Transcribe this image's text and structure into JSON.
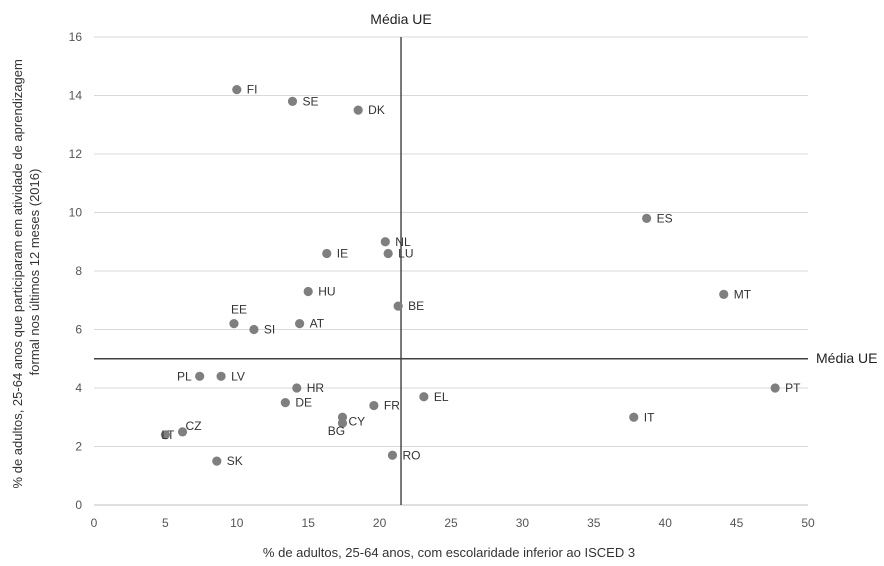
{
  "chart_data": {
    "type": "scatter",
    "xlabel": "% de adultos, 25-64 anos, com escolaridade inferior ao ISCED 3",
    "ylabel_lines": [
      "% de adultos, 25-64 anos que participaram em atividade de aprendizagem",
      "formal nos últimos 12 meses (2016)"
    ],
    "xlim": [
      0,
      50
    ],
    "ylim": [
      0,
      16
    ],
    "xticks": [
      0,
      5,
      10,
      15,
      20,
      25,
      30,
      35,
      40,
      45,
      50
    ],
    "yticks": [
      0,
      2,
      4,
      6,
      8,
      10,
      12,
      14,
      16
    ],
    "grid": "horizontal",
    "marker_color": "#7f7f7f",
    "reference_lines": {
      "vertical": {
        "x": 21.5,
        "label": "Média UE"
      },
      "horizontal": {
        "y": 5.0,
        "label": "Média UE"
      }
    },
    "points": [
      {
        "label": "FI",
        "x": 10.0,
        "y": 14.2
      },
      {
        "label": "SE",
        "x": 13.9,
        "y": 13.8
      },
      {
        "label": "DK",
        "x": 18.5,
        "y": 13.5
      },
      {
        "label": "ES",
        "x": 38.7,
        "y": 9.8
      },
      {
        "label": "NL",
        "x": 20.4,
        "y": 9.0
      },
      {
        "label": "IE",
        "x": 16.3,
        "y": 8.6
      },
      {
        "label": "LU",
        "x": 20.6,
        "y": 8.6
      },
      {
        "label": "HU",
        "x": 15.0,
        "y": 7.3
      },
      {
        "label": "MT",
        "x": 44.1,
        "y": 7.2
      },
      {
        "label": "BE",
        "x": 21.3,
        "y": 6.8
      },
      {
        "label": "EE",
        "x": 9.8,
        "y": 6.2
      },
      {
        "label": "SI",
        "x": 11.2,
        "y": 6.0
      },
      {
        "label": "AT",
        "x": 14.4,
        "y": 6.2
      },
      {
        "label": "PL",
        "x": 7.4,
        "y": 4.4
      },
      {
        "label": "LV",
        "x": 8.9,
        "y": 4.4
      },
      {
        "label": "HR",
        "x": 14.2,
        "y": 4.0
      },
      {
        "label": "PT",
        "x": 47.7,
        "y": 4.0
      },
      {
        "label": "DE",
        "x": 13.4,
        "y": 3.5
      },
      {
        "label": "EL",
        "x": 23.1,
        "y": 3.7
      },
      {
        "label": "FR",
        "x": 19.6,
        "y": 3.4
      },
      {
        "label": "IT",
        "x": 37.8,
        "y": 3.0
      },
      {
        "label": "CY",
        "x": 17.4,
        "y": 3.0
      },
      {
        "label": "BG",
        "x": 17.4,
        "y": 2.8
      },
      {
        "label": "CZ",
        "x": 6.2,
        "y": 2.5
      },
      {
        "label": "LT",
        "x": 5.0,
        "y": 2.4
      },
      {
        "label": "RO",
        "x": 20.9,
        "y": 1.7
      },
      {
        "label": "SK",
        "x": 8.6,
        "y": 1.5
      }
    ]
  }
}
